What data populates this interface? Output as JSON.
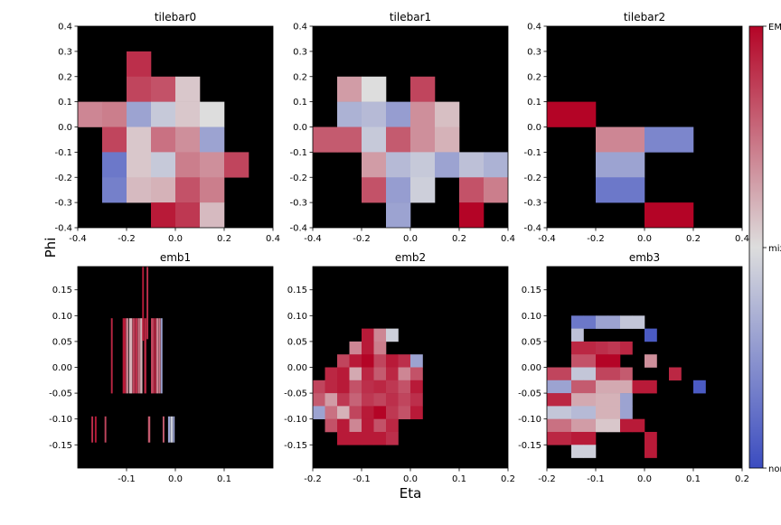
{
  "figure": {
    "xlabel": "Eta",
    "ylabel": "Phi"
  },
  "colorbar": {
    "colors": [
      "#3b4cc0",
      "#dddddd",
      "#b40426"
    ],
    "labels_top_to_bottom": [
      "EM",
      "mix",
      "non"
    ]
  },
  "chart_data": [
    {
      "type": "heatmap",
      "title": "tilebar0",
      "xlim": [
        -0.4,
        0.4
      ],
      "ylim": [
        -0.4,
        0.4
      ],
      "xticks": [
        "-0.4",
        "-0.2",
        "0.0",
        "0.2",
        "0.4"
      ],
      "yticks": [
        "0.4",
        "0.3",
        "0.2",
        "0.1",
        "0.0",
        "-0.1",
        "-0.2",
        "-0.3",
        "-0.4"
      ],
      "background": "#000000",
      "cell_w": 0.1,
      "cell_h": 0.1,
      "cells": [
        [
          -0.2,
          0.2,
          0.9
        ],
        [
          -0.2,
          0.1,
          0.85
        ],
        [
          -0.1,
          0.1,
          0.82
        ],
        [
          0.0,
          0.1,
          0.55
        ],
        [
          -0.4,
          0.0,
          0.7
        ],
        [
          -0.3,
          0.0,
          0.72
        ],
        [
          -0.2,
          0.0,
          0.3
        ],
        [
          -0.1,
          0.0,
          0.43
        ],
        [
          0.0,
          0.0,
          0.55
        ],
        [
          0.1,
          0.0,
          0.5
        ],
        [
          -0.3,
          -0.1,
          0.85
        ],
        [
          -0.2,
          -0.1,
          0.55
        ],
        [
          -0.1,
          -0.1,
          0.75
        ],
        [
          0.0,
          -0.1,
          0.68
        ],
        [
          0.1,
          -0.1,
          0.3
        ],
        [
          -0.3,
          -0.2,
          0.15
        ],
        [
          -0.2,
          -0.2,
          0.55
        ],
        [
          -0.1,
          -0.2,
          0.43
        ],
        [
          0.0,
          -0.2,
          0.72
        ],
        [
          0.1,
          -0.2,
          0.68
        ],
        [
          0.2,
          -0.2,
          0.85
        ],
        [
          -0.3,
          -0.3,
          0.18
        ],
        [
          -0.2,
          -0.3,
          0.58
        ],
        [
          -0.1,
          -0.3,
          0.6
        ],
        [
          0.0,
          -0.3,
          0.82
        ],
        [
          0.1,
          -0.3,
          0.72
        ],
        [
          -0.1,
          -0.4,
          0.95
        ],
        [
          0.0,
          -0.4,
          0.88
        ],
        [
          0.1,
          -0.4,
          0.58
        ]
      ]
    },
    {
      "type": "heatmap",
      "title": "tilebar1",
      "xlim": [
        -0.4,
        0.4
      ],
      "ylim": [
        -0.4,
        0.4
      ],
      "xticks": [
        "-0.4",
        "-0.2",
        "0.0",
        "0.2",
        "0.4"
      ],
      "yticks": [
        "0.4",
        "0.3",
        "0.2",
        "0.1",
        "0.0",
        "-0.1",
        "-0.2",
        "-0.3",
        "-0.4"
      ],
      "background": "#000000",
      "cell_w": 0.1,
      "cell_h": 0.1,
      "cells": [
        [
          -0.3,
          0.1,
          0.65
        ],
        [
          -0.2,
          0.1,
          0.5
        ],
        [
          0.0,
          0.1,
          0.85
        ],
        [
          -0.3,
          0.0,
          0.35
        ],
        [
          -0.2,
          0.0,
          0.38
        ],
        [
          -0.1,
          0.0,
          0.28
        ],
        [
          0.0,
          0.0,
          0.68
        ],
        [
          0.1,
          0.0,
          0.57
        ],
        [
          -0.4,
          -0.1,
          0.8
        ],
        [
          -0.3,
          -0.1,
          0.8
        ],
        [
          -0.2,
          -0.1,
          0.43
        ],
        [
          -0.1,
          -0.1,
          0.8
        ],
        [
          0.0,
          -0.1,
          0.68
        ],
        [
          0.1,
          -0.1,
          0.6
        ],
        [
          -0.2,
          -0.2,
          0.65
        ],
        [
          -0.1,
          -0.2,
          0.38
        ],
        [
          0.0,
          -0.2,
          0.43
        ],
        [
          0.1,
          -0.2,
          0.3
        ],
        [
          0.2,
          -0.2,
          0.4
        ],
        [
          0.3,
          -0.2,
          0.35
        ],
        [
          -0.2,
          -0.3,
          0.82
        ],
        [
          -0.1,
          -0.3,
          0.28
        ],
        [
          0.0,
          -0.3,
          0.45
        ],
        [
          0.2,
          -0.3,
          0.82
        ],
        [
          0.3,
          -0.3,
          0.72
        ],
        [
          -0.1,
          -0.4,
          0.3
        ],
        [
          0.2,
          -0.4,
          1.0
        ]
      ]
    },
    {
      "type": "heatmap",
      "title": "tilebar2",
      "xlim": [
        -0.4,
        0.4
      ],
      "ylim": [
        -0.4,
        0.4
      ],
      "xticks": [
        "-0.4",
        "-0.2",
        "0.0",
        "0.2",
        "0.4"
      ],
      "yticks": [
        "0.4",
        "0.3",
        "0.2",
        "0.1",
        "0.0",
        "-0.1",
        "-0.2",
        "-0.3",
        "-0.4"
      ],
      "background": "#000000",
      "cell_w": 0.2,
      "cell_h": 0.1,
      "cells": [
        [
          -0.4,
          0.0,
          1.0
        ],
        [
          -0.2,
          -0.1,
          0.7
        ],
        [
          0.0,
          -0.1,
          0.2
        ],
        [
          -0.2,
          -0.2,
          0.3
        ],
        [
          -0.2,
          -0.3,
          0.15
        ],
        [
          0.0,
          -0.4,
          1.0
        ]
      ]
    },
    {
      "type": "heatmap",
      "title": "emb1",
      "xlim": [
        -0.2,
        0.2
      ],
      "ylim": [
        -0.195,
        0.195
      ],
      "xticks": [
        "-0.1",
        "0.0",
        "0.1"
      ],
      "yticks": [
        "0.15",
        "0.10",
        "0.05",
        "0.00",
        "-0.05",
        "-0.10",
        "-0.15"
      ],
      "background": "#000000",
      "cells": [
        [
          -0.172,
          -0.145,
          0.003,
          0.05,
          0.9
        ],
        [
          -0.165,
          -0.145,
          0.003,
          0.05,
          0.95
        ],
        [
          -0.145,
          -0.145,
          0.003,
          0.05,
          0.85
        ],
        [
          -0.132,
          -0.05,
          0.003,
          0.145,
          0.92
        ],
        [
          -0.108,
          -0.05,
          0.006,
          0.145,
          0.95
        ],
        [
          -0.101,
          -0.05,
          0.004,
          0.145,
          0.7
        ],
        [
          -0.095,
          -0.05,
          0.006,
          0.145,
          0.6
        ],
        [
          -0.088,
          -0.05,
          0.004,
          0.145,
          0.85
        ],
        [
          -0.083,
          -0.05,
          0.005,
          0.145,
          0.9
        ],
        [
          -0.077,
          -0.05,
          0.004,
          0.145,
          0.75
        ],
        [
          -0.072,
          -0.05,
          0.004,
          0.145,
          0.6
        ],
        [
          -0.068,
          0.052,
          0.003,
          0.247,
          0.95
        ],
        [
          -0.064,
          -0.05,
          0.004,
          0.145,
          0.92
        ],
        [
          -0.059,
          0.055,
          0.003,
          0.25,
          0.9
        ],
        [
          -0.056,
          -0.145,
          0.004,
          0.05,
          0.8
        ],
        [
          -0.05,
          -0.05,
          0.005,
          0.145,
          0.85
        ],
        [
          -0.044,
          -0.05,
          0.004,
          0.145,
          0.92
        ],
        [
          -0.039,
          -0.05,
          0.004,
          0.145,
          0.7
        ],
        [
          -0.034,
          -0.05,
          0.003,
          0.145,
          0.75
        ],
        [
          -0.03,
          -0.05,
          0.003,
          0.145,
          0.3
        ],
        [
          -0.026,
          -0.145,
          0.003,
          0.05,
          0.8
        ],
        [
          -0.015,
          -0.145,
          0.004,
          0.05,
          0.3
        ],
        [
          -0.01,
          -0.145,
          0.004,
          0.05,
          0.45
        ],
        [
          -0.005,
          -0.145,
          0.003,
          0.05,
          0.3
        ]
      ]
    },
    {
      "type": "heatmap",
      "title": "emb2",
      "xlim": [
        -0.2,
        0.2
      ],
      "ylim": [
        -0.195,
        0.195
      ],
      "xticks": [
        "-0.2",
        "-0.1",
        "0.0",
        "0.1",
        "0.2"
      ],
      "yticks": [
        "0.15",
        "0.10",
        "0.05",
        "0.00",
        "-0.05",
        "-0.10",
        "-0.15"
      ],
      "background": "#000000",
      "cell_w": 0.025,
      "cell_h": 0.025,
      "cells": [
        [
          -0.1,
          0.05,
          0.95
        ],
        [
          -0.075,
          0.05,
          0.7
        ],
        [
          -0.05,
          0.05,
          0.45
        ],
        [
          -0.125,
          0.025,
          0.7
        ],
        [
          -0.1,
          0.025,
          0.95
        ],
        [
          -0.075,
          0.025,
          0.72
        ],
        [
          -0.15,
          0.0,
          0.85
        ],
        [
          -0.125,
          0.0,
          0.95
        ],
        [
          -0.1,
          0.0,
          1.0
        ],
        [
          -0.075,
          0.0,
          0.85
        ],
        [
          -0.05,
          0.0,
          0.95
        ],
        [
          -0.025,
          0.0,
          0.9
        ],
        [
          0.0,
          0.0,
          0.3
        ],
        [
          -0.175,
          -0.025,
          0.92
        ],
        [
          -0.15,
          -0.025,
          0.95
        ],
        [
          -0.125,
          -0.025,
          0.62
        ],
        [
          -0.1,
          -0.025,
          0.92
        ],
        [
          -0.075,
          -0.025,
          0.8
        ],
        [
          -0.05,
          -0.025,
          0.92
        ],
        [
          -0.025,
          -0.025,
          0.7
        ],
        [
          0.0,
          -0.025,
          0.82
        ],
        [
          -0.2,
          -0.05,
          0.85
        ],
        [
          -0.175,
          -0.05,
          0.92
        ],
        [
          -0.15,
          -0.05,
          0.95
        ],
        [
          -0.125,
          -0.05,
          0.82
        ],
        [
          -0.1,
          -0.05,
          0.9
        ],
        [
          -0.075,
          -0.05,
          0.92
        ],
        [
          -0.05,
          -0.05,
          0.88
        ],
        [
          -0.025,
          -0.05,
          0.82
        ],
        [
          0.0,
          -0.05,
          0.95
        ],
        [
          -0.2,
          -0.075,
          0.8
        ],
        [
          -0.175,
          -0.075,
          0.65
        ],
        [
          -0.15,
          -0.075,
          0.88
        ],
        [
          -0.125,
          -0.075,
          0.78
        ],
        [
          -0.1,
          -0.075,
          0.88
        ],
        [
          -0.075,
          -0.075,
          0.85
        ],
        [
          -0.05,
          -0.075,
          0.9
        ],
        [
          -0.025,
          -0.075,
          0.85
        ],
        [
          0.0,
          -0.075,
          0.9
        ],
        [
          -0.2,
          -0.1,
          0.3
        ],
        [
          -0.175,
          -0.1,
          0.75
        ],
        [
          -0.15,
          -0.1,
          0.6
        ],
        [
          -0.125,
          -0.1,
          0.85
        ],
        [
          -0.1,
          -0.1,
          0.95
        ],
        [
          -0.075,
          -0.1,
          1.0
        ],
        [
          -0.05,
          -0.1,
          0.88
        ],
        [
          -0.025,
          -0.1,
          0.82
        ],
        [
          0.0,
          -0.1,
          0.95
        ],
        [
          -0.175,
          -0.125,
          0.82
        ],
        [
          -0.15,
          -0.125,
          0.95
        ],
        [
          -0.125,
          -0.125,
          0.7
        ],
        [
          -0.1,
          -0.125,
          0.95
        ],
        [
          -0.075,
          -0.125,
          0.82
        ],
        [
          -0.05,
          -0.125,
          0.92
        ],
        [
          -0.15,
          -0.15,
          0.95
        ],
        [
          -0.125,
          -0.15,
          0.95
        ],
        [
          -0.1,
          -0.15,
          0.95
        ],
        [
          -0.075,
          -0.15,
          0.95
        ],
        [
          -0.05,
          -0.15,
          0.9
        ]
      ]
    },
    {
      "type": "heatmap",
      "title": "emb3",
      "xlim": [
        -0.2,
        0.2
      ],
      "ylim": [
        -0.195,
        0.195
      ],
      "xticks": [
        "-0.2",
        "-0.1",
        "0.0",
        "0.1",
        "0.2"
      ],
      "yticks": [
        "0.15",
        "0.10",
        "0.05",
        "0.00",
        "-0.05",
        "-0.10",
        "-0.15"
      ],
      "background": "#000000",
      "cell_w": 0.025,
      "cell_h": 0.025,
      "cells": [
        [
          -0.15,
          0.075,
          0.15
        ],
        [
          -0.125,
          0.075,
          0.15
        ],
        [
          -0.1,
          0.075,
          0.3
        ],
        [
          -0.075,
          0.075,
          0.3
        ],
        [
          -0.05,
          0.075,
          0.42
        ],
        [
          -0.025,
          0.075,
          0.42
        ],
        [
          -0.15,
          0.05,
          0.4
        ],
        [
          0.0,
          0.05,
          0.05
        ],
        [
          -0.15,
          0.025,
          0.92
        ],
        [
          -0.125,
          0.025,
          0.92
        ],
        [
          -0.1,
          0.025,
          0.9
        ],
        [
          -0.075,
          0.025,
          0.88
        ],
        [
          -0.05,
          0.025,
          0.92
        ],
        [
          -0.15,
          0.0,
          0.82
        ],
        [
          -0.125,
          0.0,
          0.82
        ],
        [
          -0.1,
          0.0,
          1.0
        ],
        [
          -0.075,
          0.0,
          1.0
        ],
        [
          0.0,
          0.0,
          0.68
        ],
        [
          -0.2,
          -0.025,
          0.85
        ],
        [
          -0.175,
          -0.025,
          0.85
        ],
        [
          -0.15,
          -0.025,
          0.42
        ],
        [
          -0.125,
          -0.025,
          0.42
        ],
        [
          -0.1,
          -0.025,
          0.85
        ],
        [
          -0.075,
          -0.025,
          0.85
        ],
        [
          -0.05,
          -0.025,
          0.8
        ],
        [
          0.05,
          -0.025,
          0.92
        ],
        [
          -0.2,
          -0.05,
          0.3
        ],
        [
          -0.175,
          -0.05,
          0.3
        ],
        [
          -0.15,
          -0.05,
          0.8
        ],
        [
          -0.125,
          -0.05,
          0.8
        ],
        [
          -0.1,
          -0.05,
          0.62
        ],
        [
          -0.075,
          -0.05,
          0.62
        ],
        [
          -0.05,
          -0.05,
          0.62
        ],
        [
          -0.025,
          -0.05,
          0.95
        ],
        [
          0.0,
          -0.05,
          0.95
        ],
        [
          0.1,
          -0.05,
          0.05
        ],
        [
          -0.2,
          -0.075,
          0.92
        ],
        [
          -0.175,
          -0.075,
          0.92
        ],
        [
          -0.15,
          -0.075,
          0.62
        ],
        [
          -0.125,
          -0.075,
          0.62
        ],
        [
          -0.1,
          -0.075,
          0.6
        ],
        [
          -0.075,
          -0.075,
          0.6
        ],
        [
          -0.05,
          -0.075,
          0.3
        ],
        [
          -0.2,
          -0.1,
          0.42
        ],
        [
          -0.175,
          -0.1,
          0.42
        ],
        [
          -0.15,
          -0.1,
          0.38
        ],
        [
          -0.125,
          -0.1,
          0.38
        ],
        [
          -0.1,
          -0.1,
          0.6
        ],
        [
          -0.075,
          -0.1,
          0.6
        ],
        [
          -0.05,
          -0.1,
          0.3
        ],
        [
          -0.2,
          -0.125,
          0.75
        ],
        [
          -0.175,
          -0.125,
          0.75
        ],
        [
          -0.15,
          -0.125,
          0.65
        ],
        [
          -0.125,
          -0.125,
          0.65
        ],
        [
          -0.1,
          -0.125,
          0.55
        ],
        [
          -0.075,
          -0.125,
          0.55
        ],
        [
          -0.05,
          -0.125,
          0.95
        ],
        [
          -0.025,
          -0.125,
          0.95
        ],
        [
          -0.2,
          -0.15,
          0.92
        ],
        [
          -0.175,
          -0.15,
          0.92
        ],
        [
          -0.15,
          -0.15,
          0.95
        ],
        [
          -0.125,
          -0.15,
          0.95
        ],
        [
          0.0,
          -0.15,
          0.95
        ],
        [
          -0.15,
          -0.175,
          0.45
        ],
        [
          -0.125,
          -0.175,
          0.45
        ],
        [
          0.0,
          -0.175,
          0.95
        ]
      ]
    }
  ]
}
